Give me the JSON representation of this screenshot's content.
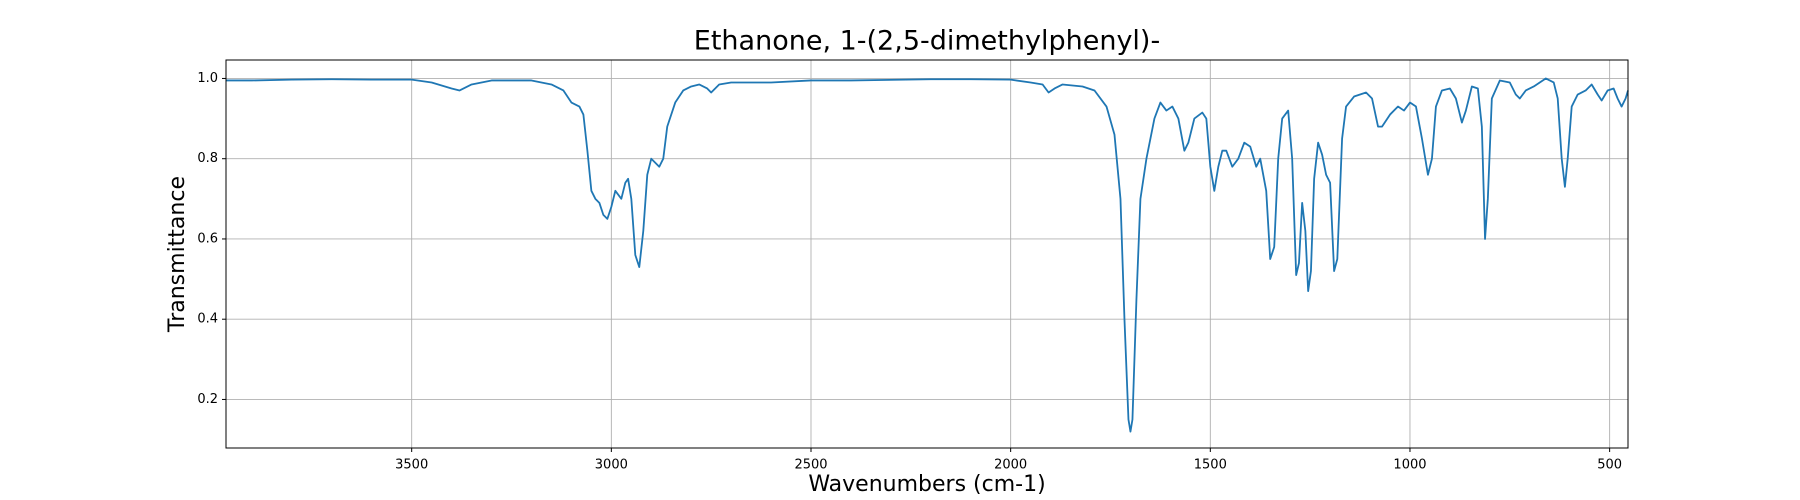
{
  "chart_data": {
    "type": "line",
    "title": "Ethanone, 1-(2,5-dimethylphenyl)-",
    "x_label": "Wavenumbers (cm-1)",
    "y_label": "Transmittance",
    "x": [
      3965,
      3900,
      3800,
      3700,
      3600,
      3500,
      3450,
      3400,
      3380,
      3350,
      3300,
      3200,
      3150,
      3120,
      3100,
      3080,
      3070,
      3060,
      3050,
      3040,
      3030,
      3020,
      3010,
      3000,
      2990,
      2975,
      2965,
      2958,
      2950,
      2940,
      2930,
      2920,
      2910,
      2900,
      2890,
      2880,
      2870,
      2860,
      2840,
      2820,
      2800,
      2780,
      2760,
      2750,
      2730,
      2700,
      2600,
      2500,
      2400,
      2200,
      2100,
      2000,
      1950,
      1920,
      1905,
      1890,
      1870,
      1820,
      1790,
      1760,
      1740,
      1725,
      1715,
      1705,
      1700,
      1695,
      1685,
      1675,
      1660,
      1640,
      1625,
      1610,
      1595,
      1580,
      1565,
      1555,
      1540,
      1520,
      1510,
      1500,
      1490,
      1480,
      1470,
      1460,
      1445,
      1430,
      1415,
      1400,
      1385,
      1375,
      1360,
      1350,
      1340,
      1330,
      1320,
      1305,
      1295,
      1285,
      1278,
      1270,
      1262,
      1255,
      1248,
      1240,
      1230,
      1220,
      1210,
      1200,
      1190,
      1182,
      1170,
      1160,
      1140,
      1110,
      1095,
      1080,
      1070,
      1050,
      1030,
      1015,
      1000,
      985,
      970,
      955,
      945,
      935,
      920,
      900,
      885,
      870,
      860,
      845,
      830,
      820,
      812,
      805,
      795,
      775,
      750,
      735,
      725,
      710,
      690,
      675,
      660,
      640,
      630,
      620,
      612,
      605,
      595,
      580,
      560,
      545,
      530,
      520,
      505,
      490,
      480,
      470,
      460,
      454
    ],
    "values": [
      0.995,
      0.995,
      0.997,
      0.998,
      0.997,
      0.997,
      0.99,
      0.975,
      0.97,
      0.985,
      0.995,
      0.995,
      0.985,
      0.97,
      0.94,
      0.93,
      0.91,
      0.82,
      0.72,
      0.7,
      0.69,
      0.66,
      0.65,
      0.68,
      0.72,
      0.7,
      0.74,
      0.75,
      0.7,
      0.56,
      0.53,
      0.62,
      0.76,
      0.8,
      0.79,
      0.78,
      0.8,
      0.88,
      0.94,
      0.97,
      0.98,
      0.985,
      0.975,
      0.965,
      0.985,
      0.99,
      0.99,
      0.995,
      0.995,
      0.998,
      0.998,
      0.997,
      0.99,
      0.985,
      0.965,
      0.975,
      0.985,
      0.98,
      0.97,
      0.93,
      0.86,
      0.7,
      0.4,
      0.15,
      0.12,
      0.15,
      0.45,
      0.7,
      0.8,
      0.9,
      0.94,
      0.92,
      0.93,
      0.9,
      0.82,
      0.84,
      0.9,
      0.915,
      0.9,
      0.78,
      0.72,
      0.78,
      0.82,
      0.82,
      0.78,
      0.8,
      0.84,
      0.83,
      0.78,
      0.8,
      0.72,
      0.55,
      0.58,
      0.8,
      0.9,
      0.92,
      0.8,
      0.51,
      0.54,
      0.69,
      0.62,
      0.47,
      0.52,
      0.75,
      0.84,
      0.81,
      0.76,
      0.74,
      0.52,
      0.55,
      0.85,
      0.93,
      0.955,
      0.965,
      0.95,
      0.88,
      0.88,
      0.91,
      0.93,
      0.92,
      0.94,
      0.93,
      0.85,
      0.76,
      0.8,
      0.93,
      0.97,
      0.975,
      0.95,
      0.89,
      0.92,
      0.98,
      0.975,
      0.88,
      0.6,
      0.7,
      0.95,
      0.995,
      0.99,
      0.96,
      0.95,
      0.97,
      0.98,
      0.99,
      1.0,
      0.99,
      0.95,
      0.8,
      0.73,
      0.8,
      0.93,
      0.96,
      0.97,
      0.985,
      0.96,
      0.945,
      0.97,
      0.975,
      0.95,
      0.93,
      0.95,
      0.97
    ],
    "color": "#1f77b4",
    "xlim": [
      3965,
      454
    ],
    "xticks": [
      3500,
      3000,
      2500,
      2000,
      1500,
      1000,
      500
    ],
    "ylim": [
      0.079,
      1.046
    ],
    "yticks": [
      0.2,
      0.4,
      0.6,
      0.8,
      {
        "value": 1,
        "label": "1.0"
      }
    ],
    "grid": true
  }
}
